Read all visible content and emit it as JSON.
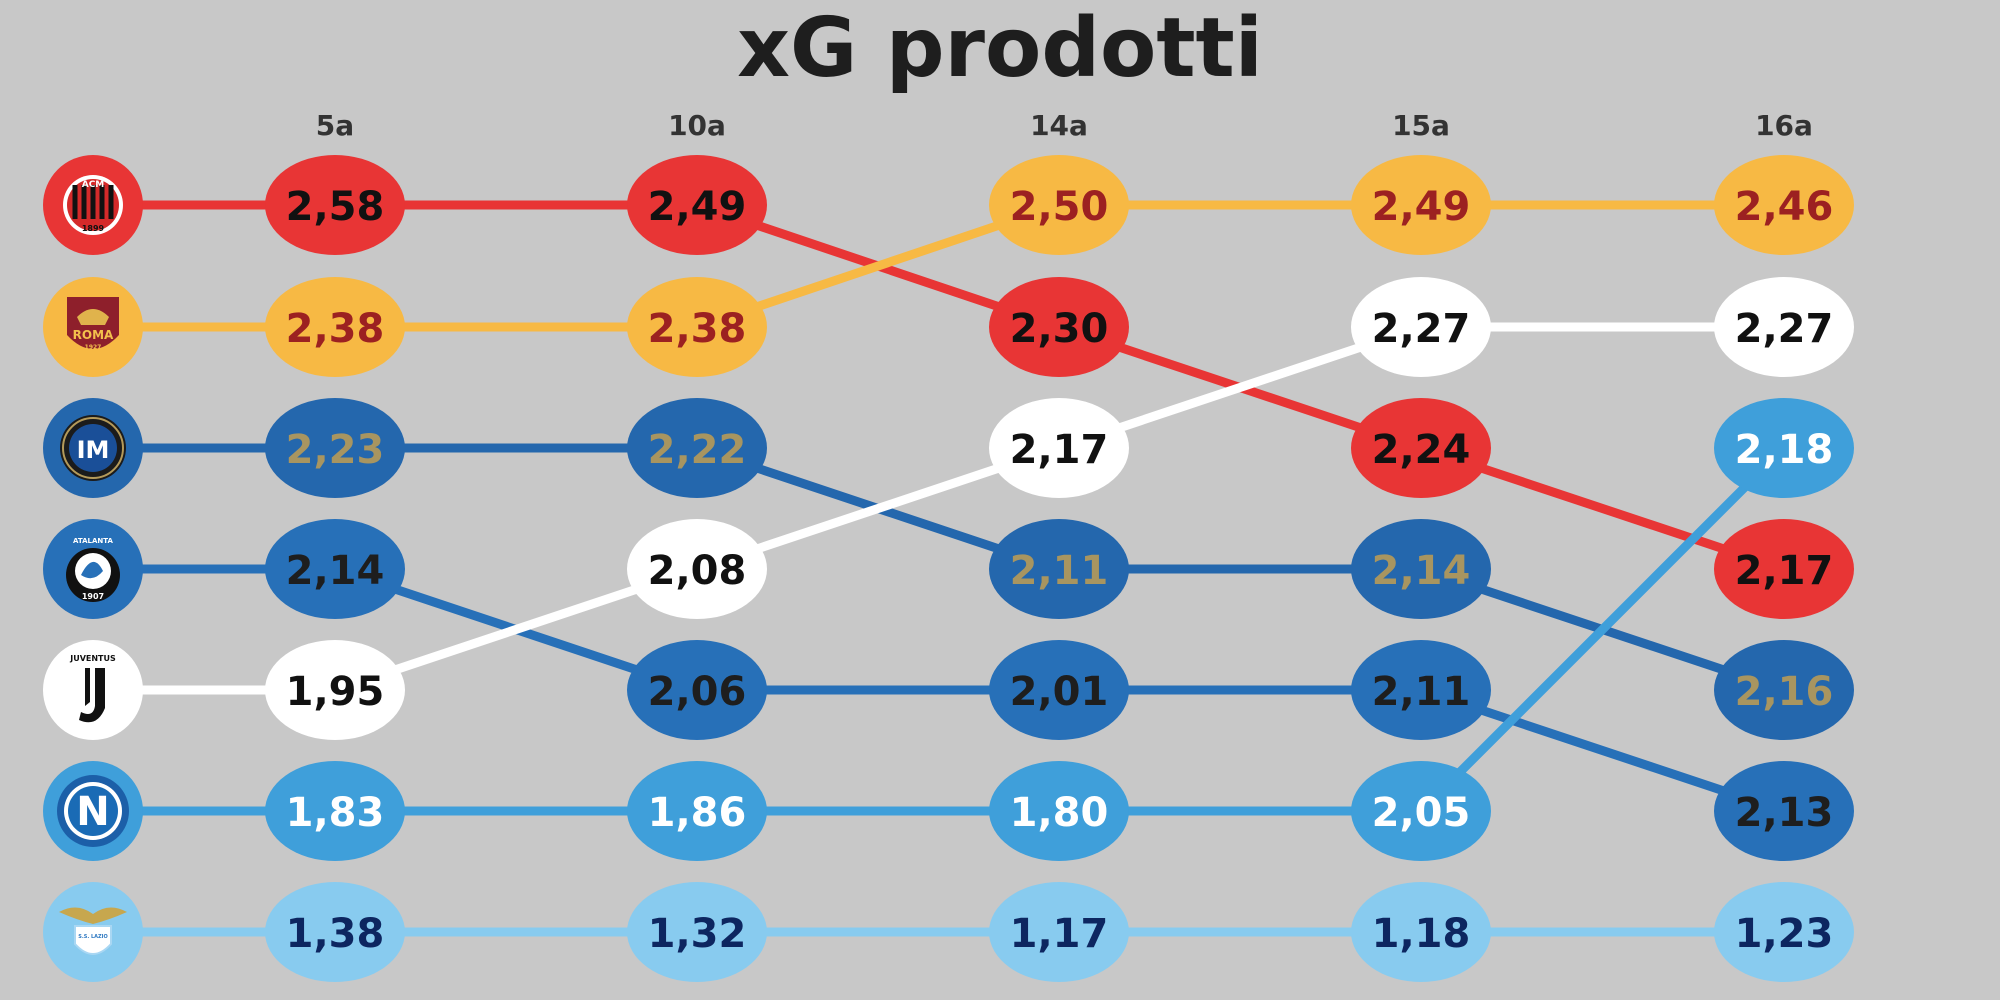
{
  "chart_data": {
    "type": "line",
    "title": "xG prodotti",
    "x": [
      "5a",
      "10a",
      "14a",
      "15a",
      "16a"
    ],
    "series": [
      {
        "team": "milan",
        "color": "#e83535",
        "text_color": "#111111",
        "values": [
          2.58,
          2.49,
          2.3,
          2.24,
          2.17
        ],
        "labels": [
          "2,58",
          "2,49",
          "2,30",
          "2,24",
          "2,17"
        ]
      },
      {
        "team": "roma",
        "color": "#f7b944",
        "text_color": "#9c2121",
        "values": [
          2.38,
          2.38,
          2.5,
          2.49,
          2.46
        ],
        "labels": [
          "2,38",
          "2,38",
          "2,50",
          "2,49",
          "2,46"
        ]
      },
      {
        "team": "inter",
        "color": "#2467ad",
        "text_color": "#a89560",
        "values": [
          2.23,
          2.22,
          2.11,
          2.14,
          2.16
        ],
        "labels": [
          "2,23",
          "2,22",
          "2,11",
          "2,14",
          "2,16"
        ]
      },
      {
        "team": "atalanta",
        "color": "#2770b8",
        "text_color": "#1e1e1e",
        "values": [
          2.14,
          2.06,
          2.01,
          2.11,
          2.13
        ],
        "labels": [
          "2,14",
          "2,06",
          "2,01",
          "2,11",
          "2,13"
        ]
      },
      {
        "team": "juventus",
        "color": "#ffffff",
        "text_color": "#111111",
        "values": [
          1.95,
          2.08,
          2.17,
          2.27,
          2.27
        ],
        "labels": [
          "1,95",
          "2,08",
          "2,17",
          "2,27",
          "2,27"
        ]
      },
      {
        "team": "napoli",
        "color": "#3f9fda",
        "text_color": "#ffffff",
        "values": [
          1.83,
          1.86,
          1.8,
          2.05,
          2.18
        ],
        "labels": [
          "1,83",
          "1,86",
          "1,80",
          "2,05",
          "2,18"
        ]
      },
      {
        "team": "lazio",
        "color": "#88cbef",
        "text_color": "#0d2660",
        "values": [
          1.38,
          1.32,
          1.17,
          1.18,
          1.23
        ],
        "labels": [
          "1,38",
          "1,32",
          "1,17",
          "1,18",
          "1,23"
        ]
      }
    ],
    "ranking_per_round": [
      [
        "milan",
        "roma",
        "inter",
        "atalanta",
        "juventus",
        "napoli",
        "lazio"
      ],
      [
        "milan",
        "roma",
        "inter",
        "juventus",
        "atalanta",
        "napoli",
        "lazio"
      ],
      [
        "roma",
        "milan",
        "juventus",
        "inter",
        "atalanta",
        "napoli",
        "lazio"
      ],
      [
        "roma",
        "juventus",
        "milan",
        "inter",
        "atalanta",
        "napoli",
        "lazio"
      ],
      [
        "roma",
        "juventus",
        "napoli",
        "milan",
        "inter",
        "atalanta",
        "lazio"
      ]
    ],
    "grid": false,
    "legend": "left (team crests)"
  },
  "logos": {
    "milan": {
      "text_top": "ACM",
      "text_bottom": "1899",
      "bg": "#e83535"
    },
    "roma": {
      "text_top": "ROMA",
      "text_bottom": "1927",
      "bg": "#f7b944"
    },
    "inter": {
      "text_top": "IM",
      "bg": "#2467ad"
    },
    "atalanta": {
      "text_top": "ATALANTA",
      "text_bottom": "1907",
      "bg": "#2770b8"
    },
    "juventus": {
      "text_top": "JUVENTUS",
      "text_bottom": "J",
      "bg": "#ffffff"
    },
    "napoli": {
      "text_top": "N",
      "bg": "#3f9fda"
    },
    "lazio": {
      "text_top": "S.S. LAZIO",
      "bg": "#88cbef"
    }
  }
}
